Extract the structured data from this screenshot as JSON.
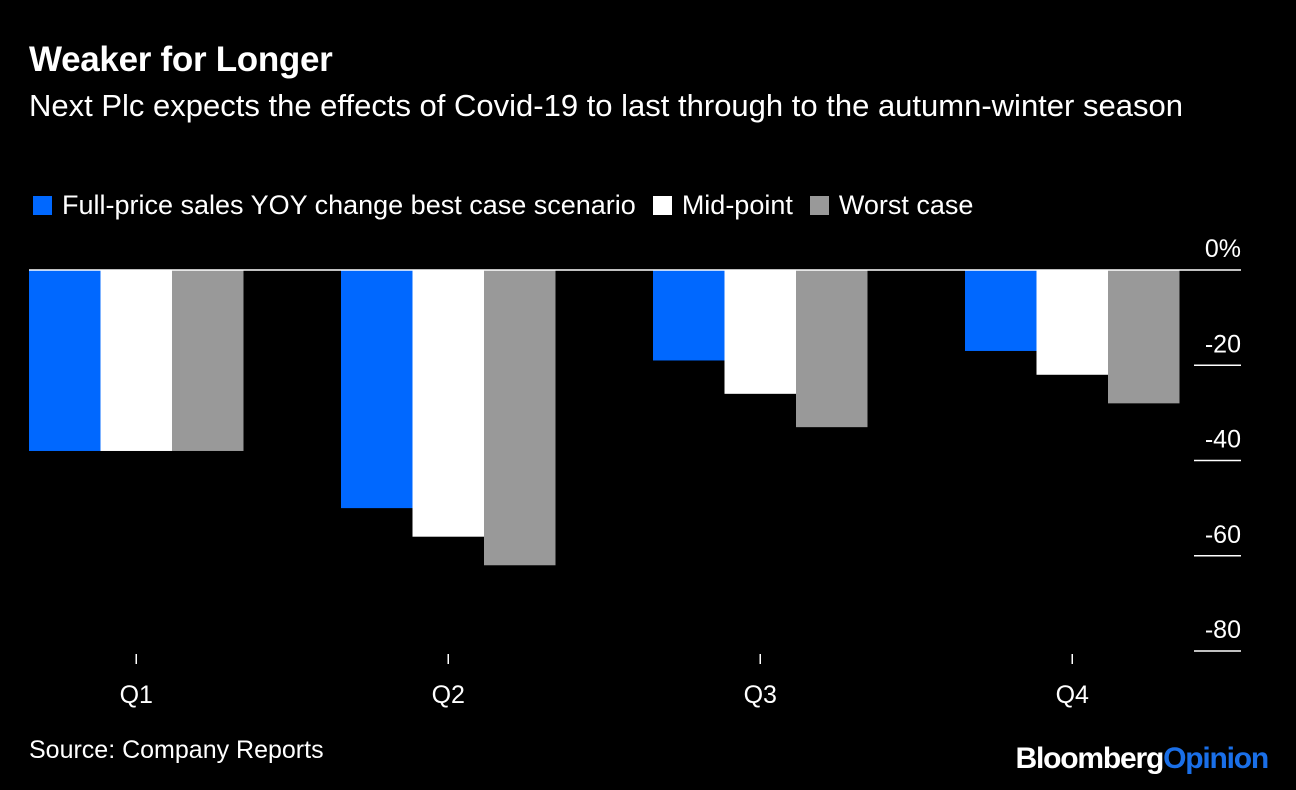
{
  "title": "Weaker for Longer",
  "subtitle": "Next Plc expects the effects of Covid-19 to last through to the autumn-winter season",
  "source": "Source: Company Reports",
  "brand": {
    "part1": "Bloomberg",
    "part2": "Opinion",
    "part1_color": "#ffffff",
    "part2_color": "#1a6fe8"
  },
  "colors": {
    "background": "#000000",
    "text": "#ffffff",
    "axis": "#ffffff"
  },
  "chart_data": {
    "type": "bar",
    "categories": [
      "Q1",
      "Q2",
      "Q3",
      "Q4"
    ],
    "series": [
      {
        "name": "Full-price sales YOY change best case scenario",
        "color": "#0068ff",
        "values": [
          -38,
          -50,
          -19,
          -17
        ]
      },
      {
        "name": "Mid-point",
        "color": "#ffffff",
        "values": [
          -38,
          -56,
          -26,
          -22
        ]
      },
      {
        "name": "Worst case",
        "color": "#999999",
        "values": [
          -38,
          -62,
          -33,
          -28
        ]
      }
    ],
    "ylim": [
      -80,
      0
    ],
    "yticks": [
      0,
      -20,
      -40,
      -60,
      -80
    ],
    "ytick_labels": [
      "0%",
      "-20",
      "-40",
      "-60",
      "-80"
    ],
    "y_axis_side": "right",
    "legend_position": "top-left",
    "grid": false
  }
}
